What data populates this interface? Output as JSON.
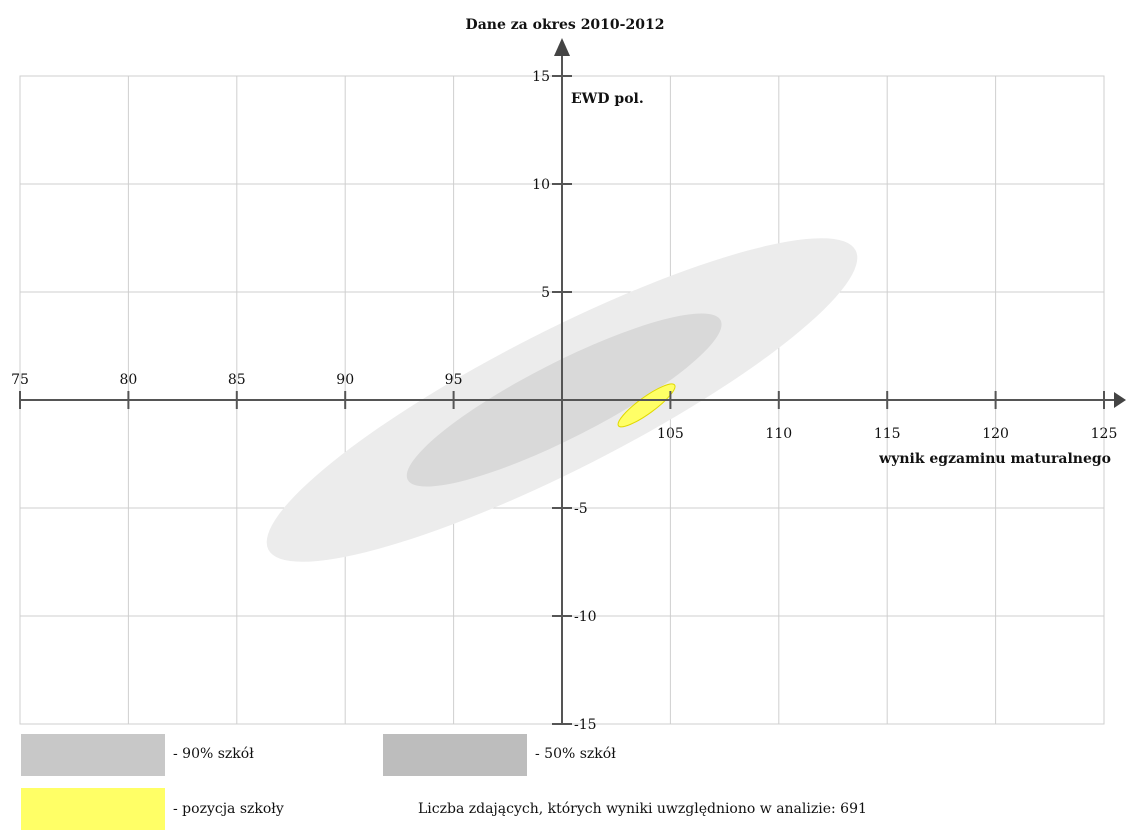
{
  "chart_data": {
    "type": "scatter",
    "title": "Dane za okres 2010-2012",
    "xlabel": "wynik egzaminu maturalnego",
    "ylabel": "EWD pol.",
    "xlim": [
      75,
      125
    ],
    "ylim": [
      -15,
      15
    ],
    "x_ticks": [
      75,
      80,
      85,
      90,
      95,
      100,
      105,
      110,
      115,
      120,
      125
    ],
    "x_tick_labels": [
      "75",
      "80",
      "85",
      "90",
      "95",
      "",
      "105",
      "110",
      "115",
      "120",
      "125"
    ],
    "y_ticks": [
      -15,
      -10,
      -5,
      0,
      5,
      10,
      15
    ],
    "y_tick_labels": [
      "-15",
      "-10",
      "-5",
      "",
      "5",
      "10",
      "15"
    ],
    "grid": true,
    "regions": [
      {
        "name": "90% szkół",
        "color": "#ececec",
        "cx": 100,
        "cy": 0,
        "rx": 15.2,
        "ry": 3.2,
        "angle_deg": 27
      },
      {
        "name": "50% szkół",
        "color": "#d9d9d9",
        "cx": 100.1,
        "cy": 0,
        "rx": 8.1,
        "ry": 1.75,
        "angle_deg": 27
      },
      {
        "name": "pozycja szkoły",
        "color": "#ffff66",
        "cx": 103.9,
        "cy": -0.25,
        "rx": 1.6,
        "ry": 0.38,
        "angle_deg": 36
      }
    ]
  },
  "legend": {
    "items": [
      {
        "label": "- 90% szkół",
        "color": "#c8c8c8"
      },
      {
        "label": "- 50% szkół",
        "color": "#bdbdbd"
      },
      {
        "label": "- pozycja szkoły",
        "color": "#ffff66"
      }
    ],
    "note": "Liczba zdających, których wyniki uwzględniono w analizie: 691"
  }
}
